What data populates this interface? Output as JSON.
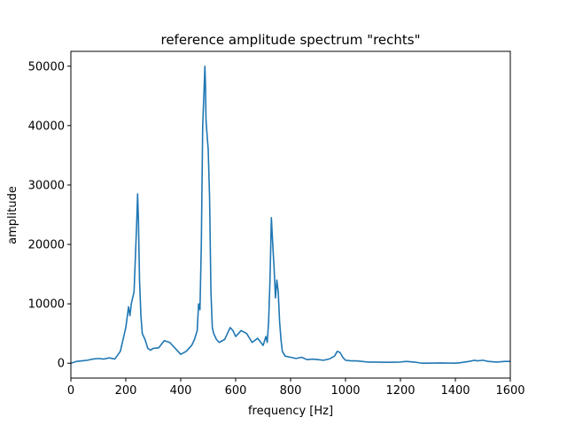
{
  "chart_data": {
    "type": "line",
    "title": "reference amplitude spectrum \"rechts\"",
    "xlabel": "frequency [Hz]",
    "ylabel": "amplitude",
    "xlim": [
      0,
      1600
    ],
    "ylim": [
      -2500,
      52500
    ],
    "xticks": [
      0,
      200,
      400,
      600,
      800,
      1000,
      1200,
      1400,
      1600
    ],
    "yticks": [
      0,
      10000,
      20000,
      30000,
      40000,
      50000
    ],
    "grid": false,
    "line_color": "#1f77b4",
    "series": [
      {
        "x": [
          0,
          20,
          40,
          60,
          80,
          100,
          120,
          140,
          160,
          180,
          200,
          210,
          215,
          220,
          225,
          230,
          235,
          240,
          243,
          246,
          250,
          255,
          260,
          270,
          280,
          290,
          300,
          320,
          340,
          360,
          380,
          400,
          420,
          440,
          450,
          460,
          465,
          470,
          475,
          480,
          485,
          488,
          490,
          492,
          495,
          500,
          505,
          510,
          515,
          520,
          530,
          540,
          560,
          580,
          590,
          600,
          620,
          640,
          660,
          680,
          700,
          710,
          715,
          720,
          725,
          730,
          735,
          740,
          745,
          750,
          755,
          760,
          765,
          770,
          780,
          800,
          820,
          840,
          860,
          880,
          900,
          920,
          940,
          960,
          970,
          980,
          990,
          1000,
          1020,
          1040,
          1060,
          1080,
          1100,
          1150,
          1200,
          1220,
          1250,
          1280,
          1300,
          1350,
          1400,
          1420,
          1450,
          1470,
          1480,
          1500,
          1520,
          1550,
          1580,
          1600
        ],
        "y": [
          0,
          300,
          400,
          500,
          700,
          800,
          700,
          900,
          700,
          2000,
          6000,
          9500,
          8000,
          10000,
          11000,
          12000,
          18000,
          24000,
          28500,
          24000,
          14000,
          8000,
          5000,
          4000,
          2500,
          2200,
          2500,
          2600,
          3800,
          3500,
          2500,
          1500,
          2000,
          3000,
          4000,
          5500,
          10000,
          9000,
          20000,
          40000,
          46000,
          50000,
          47000,
          41000,
          39000,
          36000,
          28000,
          12000,
          6000,
          5000,
          4000,
          3500,
          4000,
          6000,
          5500,
          4500,
          5500,
          5000,
          3500,
          4200,
          3000,
          4500,
          3500,
          7000,
          14000,
          24500,
          20000,
          16000,
          11000,
          14000,
          12000,
          7000,
          4000,
          2000,
          1200,
          1000,
          800,
          1000,
          600,
          700,
          600,
          500,
          700,
          1200,
          2000,
          1800,
          1000,
          500,
          400,
          400,
          300,
          200,
          200,
          150,
          200,
          300,
          200,
          0,
          0,
          50,
          0,
          100,
          300,
          500,
          400,
          500,
          300,
          200,
          300,
          300
        ]
      }
    ]
  }
}
